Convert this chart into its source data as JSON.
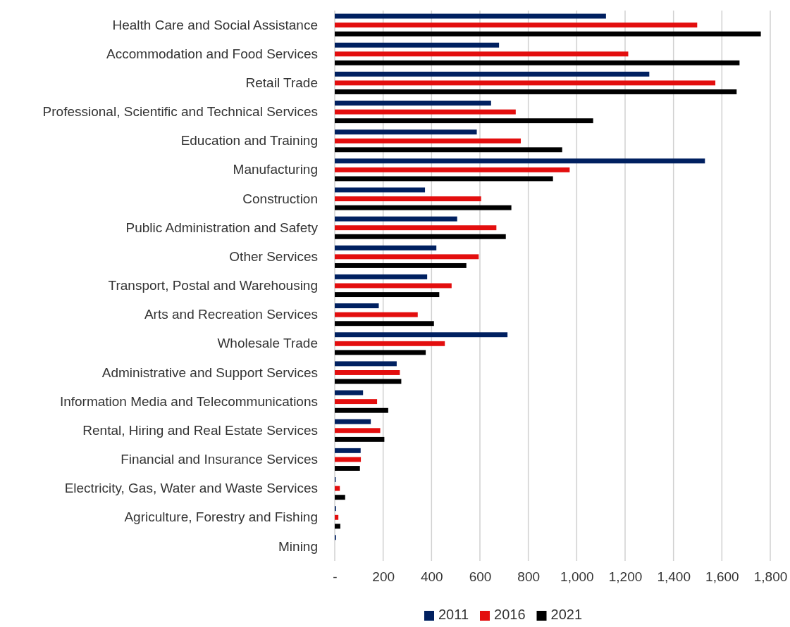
{
  "chart_data": {
    "type": "bar",
    "orientation": "horizontal",
    "categories": [
      "Health Care and Social Assistance",
      "Accommodation and Food Services",
      "Retail Trade",
      "Professional, Scientific and Technical Services",
      "Education and Training",
      "Manufacturing",
      "Construction",
      "Public Administration and Safety",
      "Other Services",
      "Transport, Postal and Warehousing",
      "Arts and Recreation Services",
      "Wholesale Trade",
      "Administrative and Support Services",
      "Information Media and Telecommunications",
      "Rental, Hiring and Real Estate Services",
      "Financial and Insurance Services",
      "Electricity, Gas, Water and Waste Services",
      "Agriculture, Forestry and Fishing",
      "Mining"
    ],
    "series": [
      {
        "name": "2011",
        "color": "#002060",
        "values": [
          1121,
          679,
          1300,
          646,
          587,
          1530,
          373,
          506,
          420,
          382,
          182,
          714,
          256,
          117,
          149,
          107,
          4,
          5,
          5
        ]
      },
      {
        "name": "2016",
        "color": "#e30e0e",
        "values": [
          1498,
          1213,
          1573,
          748,
          769,
          971,
          605,
          668,
          595,
          483,
          343,
          455,
          269,
          175,
          188,
          108,
          21,
          15,
          0
        ]
      },
      {
        "name": "2021",
        "color": "#000000",
        "values": [
          1761,
          1673,
          1661,
          1068,
          940,
          902,
          730,
          707,
          544,
          432,
          410,
          376,
          275,
          221,
          205,
          104,
          43,
          23,
          0
        ]
      }
    ],
    "xlim": [
      0,
      1800
    ],
    "xticks": [
      {
        "value": 0,
        "label": "-"
      },
      200,
      400,
      600,
      800,
      {
        "value": 1000,
        "label": "1,000"
      },
      {
        "value": 1200,
        "label": "1,200"
      },
      {
        "value": 1400,
        "label": "1,400"
      },
      {
        "value": 1600,
        "label": "1,600"
      },
      {
        "value": 1800,
        "label": "1,800"
      }
    ],
    "grid": "x",
    "legend": "bottom"
  }
}
